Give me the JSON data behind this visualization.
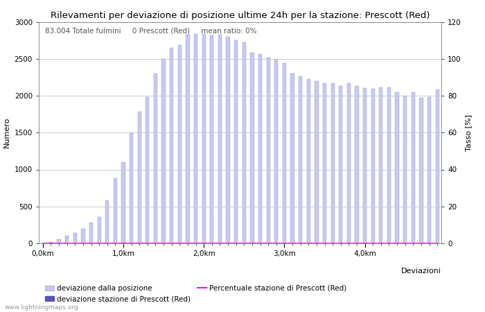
{
  "title": "Rilevamenti per deviazione di posizione ultime 24h per la stazione: Prescott (Red)",
  "xlabel": "Deviazioni",
  "ylabel_left": "Numero",
  "ylabel_right": "Tasso [%]",
  "annotation": "83.004 Totale fulmini     0 Prescott (Red)     mean ratio: 0%",
  "bar_color": "#c8caf0",
  "bar_edge_color": "#9898cc",
  "station_bar_color": "#5555bb",
  "line_color": "#ff00ff",
  "background_color": "#ffffff",
  "grid_color": "#bbbbbb",
  "ylim_left": [
    0,
    3000
  ],
  "ylim_right": [
    0,
    120
  ],
  "yticks_left": [
    0,
    500,
    1000,
    1500,
    2000,
    2500,
    3000
  ],
  "yticks_right": [
    0,
    20,
    40,
    60,
    80,
    100,
    120
  ],
  "legend_labels": [
    "deviazione dalla posizione",
    "deviazione stazione di Prescott (Red)",
    "Percentuale stazione di Prescott (Red)"
  ],
  "watermark": "www.lightningmaps.org",
  "bar_values": [
    0,
    20,
    60,
    100,
    140,
    200,
    280,
    360,
    580,
    880,
    1100,
    1490,
    1780,
    1980,
    2300,
    2500,
    2650,
    2690,
    2830,
    2840,
    2840,
    2820,
    2830,
    2800,
    2750,
    2720,
    2580,
    2560,
    2520,
    2490,
    2440,
    2300,
    2260,
    2230,
    2200,
    2170,
    2170,
    2130,
    2170,
    2130,
    2100,
    2090,
    2110,
    2110,
    2050,
    2000,
    2050,
    1970,
    1980,
    2080
  ],
  "station_bar_values": [
    0,
    0,
    0,
    0,
    0,
    0,
    0,
    0,
    0,
    0,
    0,
    0,
    0,
    0,
    0,
    0,
    0,
    0,
    0,
    0,
    0,
    0,
    0,
    0,
    0,
    0,
    0,
    0,
    0,
    0,
    0,
    0,
    0,
    0,
    0,
    0,
    0,
    0,
    0,
    0,
    0,
    0,
    0,
    0,
    0,
    0,
    0,
    0,
    0,
    0
  ],
  "title_fontsize": 9.5,
  "axis_fontsize": 8,
  "tick_fontsize": 7.5,
  "legend_fontsize": 7.5,
  "annotation_fontsize": 7.5
}
